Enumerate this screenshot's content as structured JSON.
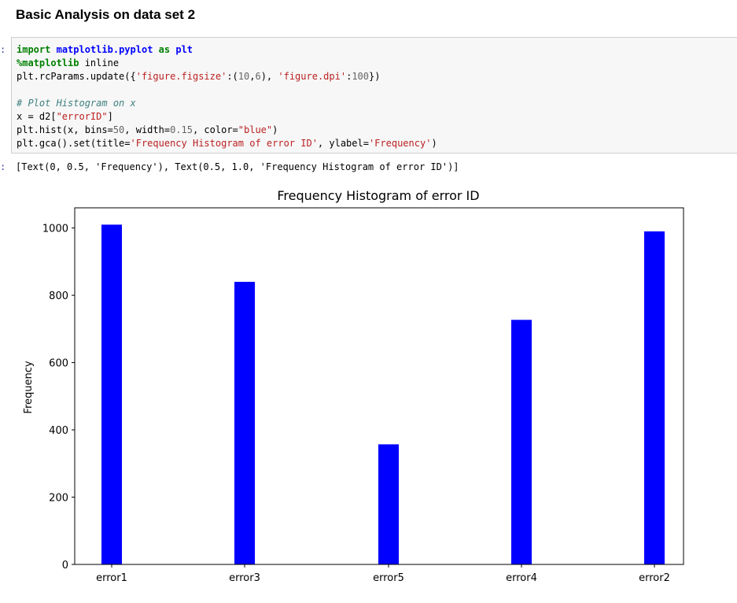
{
  "notebook": {
    "heading": "Basic Analysis on data set 2",
    "input_prompt": ":",
    "output_prompt": ":",
    "code_lines": [
      [
        {
          "t": "import",
          "c": "kw"
        },
        {
          "t": " "
        },
        {
          "t": "matplotlib.pyplot",
          "c": "mod"
        },
        {
          "t": " "
        },
        {
          "t": "as",
          "c": "kw"
        },
        {
          "t": " "
        },
        {
          "t": "plt",
          "c": "mod"
        }
      ],
      [
        {
          "t": "%matplotlib",
          "c": "magic"
        },
        {
          "t": " inline"
        }
      ],
      [
        {
          "t": "plt.rcParams.update({"
        },
        {
          "t": "'figure.figsize'",
          "c": "str"
        },
        {
          "t": ":("
        },
        {
          "t": "10",
          "c": "num"
        },
        {
          "t": ","
        },
        {
          "t": "6",
          "c": "num"
        },
        {
          "t": "), "
        },
        {
          "t": "'figure.dpi'",
          "c": "str"
        },
        {
          "t": ":"
        },
        {
          "t": "100",
          "c": "num"
        },
        {
          "t": "})"
        }
      ],
      [
        {
          "t": ""
        }
      ],
      [
        {
          "t": "# Plot Histogram on x",
          "c": "cmt"
        }
      ],
      [
        {
          "t": "x = d2["
        },
        {
          "t": "\"errorID\"",
          "c": "str"
        },
        {
          "t": "]"
        }
      ],
      [
        {
          "t": "plt.hist(x, bins="
        },
        {
          "t": "50",
          "c": "num"
        },
        {
          "t": ", width="
        },
        {
          "t": "0.15",
          "c": "num"
        },
        {
          "t": ", color="
        },
        {
          "t": "\"blue\"",
          "c": "str"
        },
        {
          "t": ")"
        }
      ],
      [
        {
          "t": "plt.gca().set(title="
        },
        {
          "t": "'Frequency Histogram of error ID'",
          "c": "str"
        },
        {
          "t": ", ylabel="
        },
        {
          "t": "'Frequency'",
          "c": "str"
        },
        {
          "t": ")"
        }
      ]
    ],
    "output_text": "[Text(0, 0.5, 'Frequency'), Text(0.5, 1.0, 'Frequency Histogram of error ID')]"
  },
  "chart_data": {
    "type": "bar",
    "title": "Frequency Histogram of error ID",
    "xlabel": "",
    "ylabel": "Frequency",
    "categories": [
      "error1",
      "error3",
      "error5",
      "error4",
      "error2"
    ],
    "values": [
      1010,
      840,
      357,
      727,
      990
    ],
    "ylim": [
      0,
      1060
    ],
    "yticks": [
      0,
      200,
      400,
      600,
      800,
      1000
    ],
    "bar_color": "#0000ff",
    "grid": false
  }
}
